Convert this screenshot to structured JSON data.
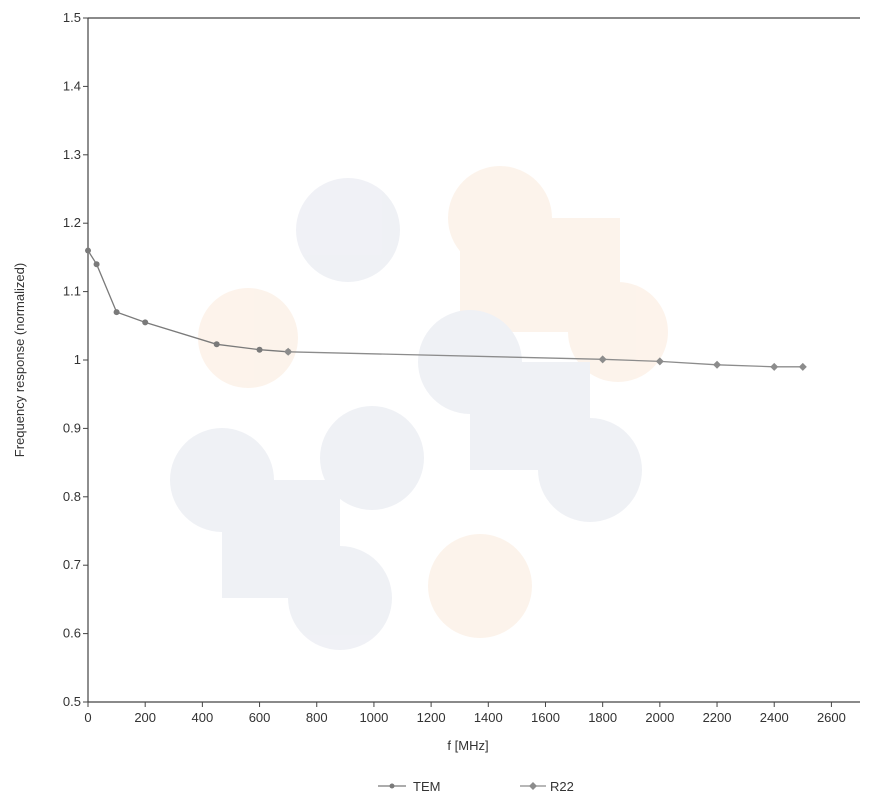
{
  "chart_data": {
    "type": "line",
    "title": "",
    "xlabel": "f [MHz]",
    "ylabel": "Frequency response (normalized)",
    "xlim": [
      0,
      2700
    ],
    "ylim": [
      0.5,
      1.5
    ],
    "x_ticks": [
      "0",
      "200",
      "400",
      "600",
      "800",
      "1000",
      "1200",
      "1400",
      "1600",
      "1800",
      "2000",
      "2200",
      "2400",
      "2600"
    ],
    "y_ticks": [
      "0.5",
      "0.6",
      "0.7",
      "0.8",
      "0.9",
      "1",
      "1.1",
      "1.2",
      "1.3",
      "1.4",
      "1.5"
    ],
    "grid": false,
    "legend_position": "bottom",
    "series": [
      {
        "name": "TEM",
        "color": "#7a7a7a",
        "marker": "circle",
        "points": [
          [
            0,
            1.16
          ],
          [
            30,
            1.14
          ],
          [
            100,
            1.07
          ],
          [
            200,
            1.055
          ],
          [
            450,
            1.023
          ],
          [
            600,
            1.015
          ],
          [
            700,
            1.012
          ]
        ]
      },
      {
        "name": "R22",
        "color": "#8c8c8c",
        "marker": "diamond",
        "points": [
          [
            700,
            1.012
          ],
          [
            1800,
            1.001
          ],
          [
            2000,
            0.998
          ],
          [
            2200,
            0.993
          ],
          [
            2400,
            0.99
          ],
          [
            2500,
            0.99
          ]
        ]
      }
    ]
  }
}
